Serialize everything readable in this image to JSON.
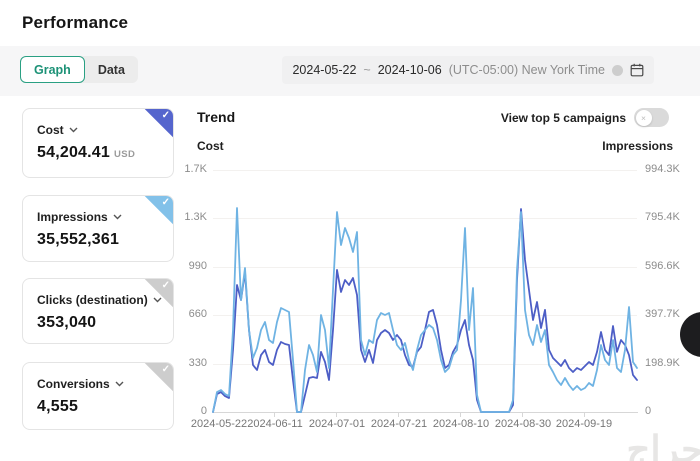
{
  "page": {
    "title": "Performance"
  },
  "tabs": {
    "graph": "Graph",
    "data": "Data"
  },
  "date_range": {
    "start": "2024-05-22",
    "separator": "~",
    "end": "2024-10-06",
    "timezone": "(UTC-05:00) New York Time"
  },
  "metric_cards": [
    {
      "label": "Cost",
      "value": "54,204.41",
      "unit": "USD",
      "selected": true,
      "accent": "#5565cd"
    },
    {
      "label": "Impressions",
      "value": "35,552,361",
      "unit": "",
      "selected": true,
      "accent": "#82c1e9"
    },
    {
      "label": "Clicks (destination)",
      "value": "353,040",
      "unit": "",
      "selected": false,
      "accent": "#cdcdcd"
    },
    {
      "label": "Conversions",
      "value": "4,555",
      "unit": "",
      "selected": false,
      "accent": "#cdcdcd"
    }
  ],
  "trend": {
    "title": "Trend",
    "toggle_label": "View top 5 campaigns",
    "toggle_on": false
  },
  "icons": {
    "check": "✓",
    "toggle_knob_x": "×"
  },
  "watermark": "حراج",
  "chart_data": {
    "type": "line",
    "title": "Trend",
    "x_range": [
      "2024-05-22",
      "2024-10-06"
    ],
    "x_tick_labels": [
      "2024-05-22",
      "2024-06-11",
      "2024-07-01",
      "2024-07-21",
      "2024-08-10",
      "2024-08-30",
      "2024-09-19"
    ],
    "grid": true,
    "legend_position": "none",
    "left_axis": {
      "title": "Cost",
      "max": 1700,
      "ticks": [
        "1.7K",
        "1.3K",
        "990",
        "660",
        "330",
        "0"
      ]
    },
    "right_axis": {
      "title": "Impressions",
      "max": 994.3,
      "unit": "K",
      "ticks": [
        "994.3K",
        "795.4K",
        "596.6K",
        "397.7K",
        "198.9K",
        "0"
      ]
    },
    "series": [
      {
        "name": "Cost",
        "axis": "left",
        "color": "#4d5ec6",
        "values": [
          0,
          126,
          140,
          112,
          98,
          436,
          892,
          787,
          983,
          576,
          330,
          295,
          400,
          436,
          351,
          330,
          436,
          492,
          478,
          471,
          225,
          0,
          0,
          119,
          239,
          246,
          239,
          422,
          351,
          225,
          576,
          998,
          843,
          927,
          892,
          941,
          822,
          436,
          351,
          436,
          344,
          506,
          555,
          576,
          555,
          506,
          541,
          506,
          400,
          330,
          316,
          422,
          457,
          576,
          703,
          717,
          611,
          436,
          309,
          330,
          422,
          471,
          576,
          646,
          471,
          365,
          84,
          0,
          0,
          0,
          0,
          0,
          0,
          0,
          0,
          49,
          927,
          1426,
          1068,
          857,
          646,
          773,
          590,
          717,
          436,
          379,
          351,
          323,
          365,
          309,
          281,
          309,
          295,
          323,
          351,
          330,
          422,
          562,
          436,
          400,
          604,
          422,
          506,
          471,
          400,
          260,
          225
        ]
      },
      {
        "name": "Impressions",
        "axis": "right",
        "color": "#6fb3e3",
        "unit": "K",
        "values": [
          0,
          82.2,
          90.4,
          74,
          65.7,
          336.9,
          838.2,
          460.2,
          591.7,
          337,
          221.9,
          263,
          337,
          369.8,
          295.8,
          283.5,
          369.8,
          427.3,
          419.1,
          410.9,
          213.7,
          0,
          0,
          172.6,
          275.3,
          234.2,
          164.3,
          398.5,
          337,
          180.8,
          501.3,
          821.7,
          686.2,
          756,
          714.9,
          657.4,
          739.6,
          295.8,
          234.2,
          295.8,
          283.5,
          378,
          406.8,
          398.5,
          406.8,
          337,
          275.3,
          254.7,
          283.5,
          213.7,
          172.6,
          254.7,
          316.4,
          337,
          357.5,
          345.1,
          295.8,
          213.7,
          164.3,
          180.8,
          234.2,
          254.7,
          460.2,
          756,
          337,
          509.5,
          69.8,
          0,
          0,
          0,
          0,
          0,
          0,
          0,
          0,
          49.3,
          583.4,
          821.7,
          419.1,
          316.4,
          275.3,
          357.5,
          287.6,
          337,
          193.1,
          164.3,
          131.5,
          110.9,
          139.7,
          110.9,
          90.4,
          106.8,
          90.4,
          98.6,
          119.2,
          106.8,
          172.6,
          275.3,
          213.7,
          193.1,
          295.8,
          180.8,
          164.3,
          254.7,
          431.4,
          205.4,
          180.8
        ]
      }
    ]
  }
}
